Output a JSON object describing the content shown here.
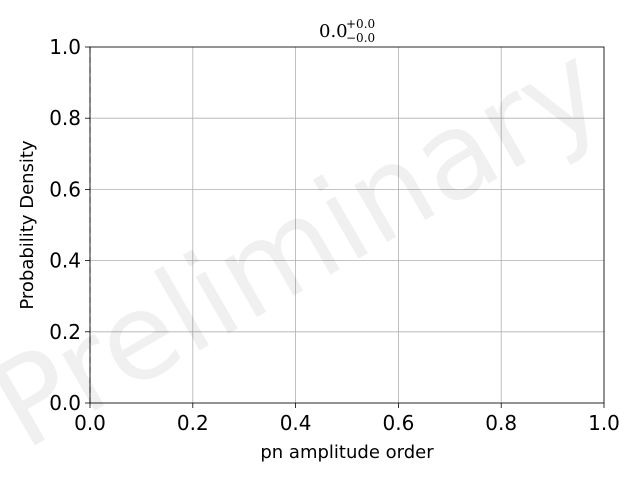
{
  "chart_data": {
    "type": "line",
    "title": {
      "base": "0.0",
      "upper": "+0.0",
      "lower": "−0.0"
    },
    "xlabel": "pn amplitude order",
    "ylabel": "Probability Density",
    "xlim": [
      0.0,
      1.0
    ],
    "ylim": [
      0.0,
      1.0
    ],
    "x_ticks": [
      {
        "value": 0.0,
        "label": "0.0"
      },
      {
        "value": 0.2,
        "label": "0.2"
      },
      {
        "value": 0.4,
        "label": "0.4"
      },
      {
        "value": 0.6,
        "label": "0.6"
      },
      {
        "value": 0.8,
        "label": "0.8"
      },
      {
        "value": 1.0,
        "label": "1.0"
      }
    ],
    "y_ticks": [
      {
        "value": 0.0,
        "label": "0.0"
      },
      {
        "value": 0.2,
        "label": "0.2"
      },
      {
        "value": 0.4,
        "label": "0.4"
      },
      {
        "value": 0.6,
        "label": "0.6"
      },
      {
        "value": 0.8,
        "label": "0.8"
      },
      {
        "value": 1.0,
        "label": "1.0"
      }
    ],
    "grid": true,
    "reference_lines": [
      {
        "orientation": "vertical",
        "x": 0.0,
        "style": "dashed",
        "color": "#bbbbbb"
      }
    ],
    "series": [],
    "watermark": "Preliminary"
  }
}
